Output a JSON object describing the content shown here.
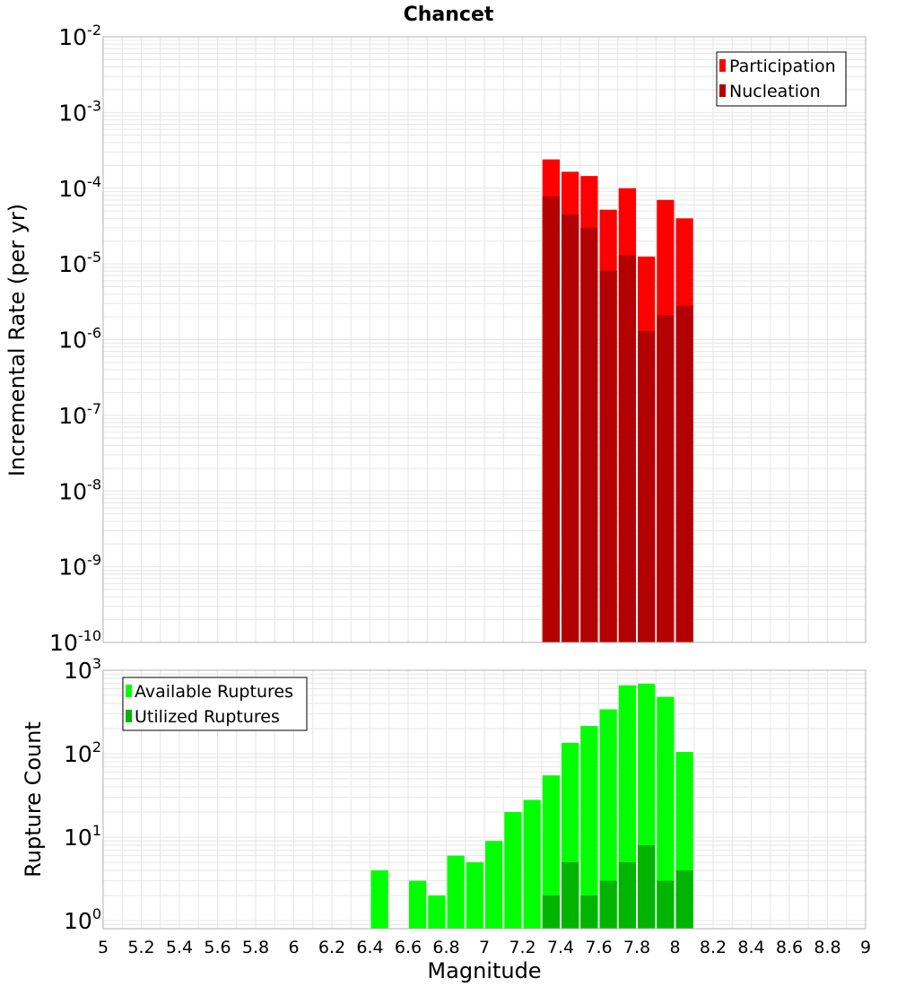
{
  "title": "Chancet",
  "colors": {
    "participation": "#ff0000",
    "nucleation": "#b30000",
    "available": "#00ff00",
    "utilized": "#00b400",
    "grid": "#e6e6e6",
    "frame": "#b0b0b0"
  },
  "chart_data": [
    {
      "type": "bar",
      "panel": "top",
      "yscale": "log",
      "ylabel": "Incremental Rate (per yr)",
      "ylim": [
        1e-10,
        0.01
      ],
      "ytick_exponents": [
        "-10",
        "-9",
        "-8",
        "-7",
        "-6",
        "-5",
        "-4",
        "-3",
        "-2"
      ],
      "grid": true,
      "legend_position": "top-right",
      "x": [
        7.35,
        7.45,
        7.55,
        7.65,
        7.75,
        7.85,
        7.95,
        8.05
      ],
      "series": [
        {
          "name": "Participation",
          "values": [
            0.00024,
            0.000165,
            0.000145,
            5.2e-05,
            0.0001,
            1.25e-05,
            7e-05,
            4e-05
          ]
        },
        {
          "name": "Nucleation",
          "values": [
            7.8e-05,
            4.5e-05,
            3e-05,
            8.1e-06,
            1.3e-05,
            1.3e-06,
            2.1e-06,
            2.8e-06
          ]
        }
      ]
    },
    {
      "type": "bar",
      "panel": "bottom",
      "yscale": "log",
      "ylabel": "Rupture Count",
      "xlabel": "Magnitude",
      "xlim": [
        5,
        9
      ],
      "ylim": [
        0.8,
        1000
      ],
      "ytick_exponents": [
        "0",
        "1",
        "2",
        "3"
      ],
      "xtick_labels": [
        "5",
        "5.2",
        "5.4",
        "5.6",
        "5.8",
        "6",
        "6.2",
        "6.4",
        "6.6",
        "6.8",
        "7",
        "7.2",
        "7.4",
        "7.6",
        "7.8",
        "8",
        "8.2",
        "8.4",
        "8.6",
        "8.8",
        "9"
      ],
      "grid": true,
      "legend_position": "top-left",
      "series": [
        {
          "name": "Available Ruptures",
          "x": [
            6.45,
            6.65,
            6.75,
            6.85,
            6.95,
            7.05,
            7.15,
            7.25,
            7.35,
            7.45,
            7.55,
            7.65,
            7.75,
            7.85,
            7.95,
            8.05
          ],
          "values": [
            4,
            3,
            2,
            6,
            5,
            9,
            20,
            28,
            55,
            135,
            215,
            340,
            660,
            690,
            480,
            105
          ]
        },
        {
          "name": "Utilized Ruptures",
          "x": [
            7.35,
            7.45,
            7.55,
            7.65,
            7.75,
            7.85,
            7.95,
            8.05
          ],
          "values": [
            2,
            5,
            2,
            3,
            5,
            8,
            3,
            4
          ]
        }
      ]
    }
  ]
}
